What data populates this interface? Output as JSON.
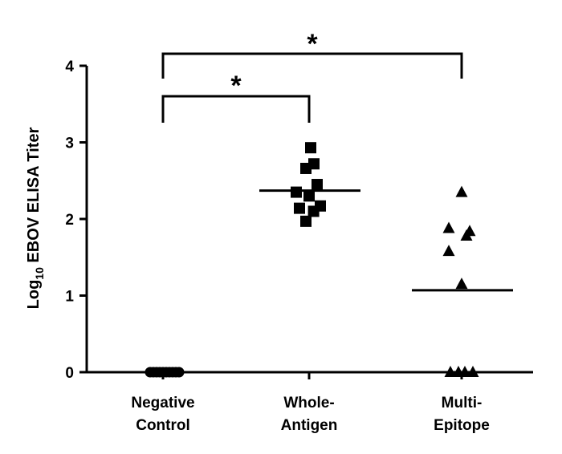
{
  "chart_data": {
    "type": "scatter",
    "ylabel": {
      "prefix": "Log",
      "subscript": "10",
      "rest": " EBOV ELISA Titer"
    },
    "ylim": [
      0,
      4
    ],
    "yticks": [
      "0",
      "1",
      "2",
      "3",
      "4"
    ],
    "grid": false,
    "categories": [
      [
        "Negative",
        "Control"
      ],
      [
        "Whole-",
        "Antigen"
      ],
      [
        "Multi-",
        "Epitope"
      ]
    ],
    "series": [
      {
        "category": 0,
        "marker": "circle",
        "points": [
          0,
          0,
          0,
          0,
          0,
          0,
          0,
          0,
          0,
          0
        ],
        "jitter": [
          -0.4,
          -0.3,
          -0.2,
          -0.1,
          0,
          0.1,
          0.2,
          0.3,
          0.4,
          0.5
        ],
        "mean": 0
      },
      {
        "category": 1,
        "marker": "square",
        "points": [
          2.93,
          2.66,
          2.72,
          2.45,
          2.35,
          2.3,
          2.14,
          2.1,
          2.17,
          1.97
        ],
        "jitter": [
          0.05,
          -0.1,
          0.15,
          0.25,
          -0.4,
          0.0,
          -0.3,
          0.14,
          0.35,
          -0.1
        ],
        "mean": 2.37
      },
      {
        "category": 2,
        "marker": "triangle",
        "points": [
          2.35,
          1.88,
          1.84,
          1.78,
          1.58,
          1.15,
          0,
          0,
          0,
          0
        ],
        "jitter": [
          0.0,
          -0.4,
          0.25,
          0.15,
          -0.4,
          0.0,
          -0.35,
          -0.1,
          0.1,
          0.35
        ],
        "mean": 1.07
      }
    ],
    "significance": [
      {
        "from": 0,
        "to": 1,
        "label": "*"
      },
      {
        "from": 0,
        "to": 2,
        "label": "*"
      }
    ]
  }
}
